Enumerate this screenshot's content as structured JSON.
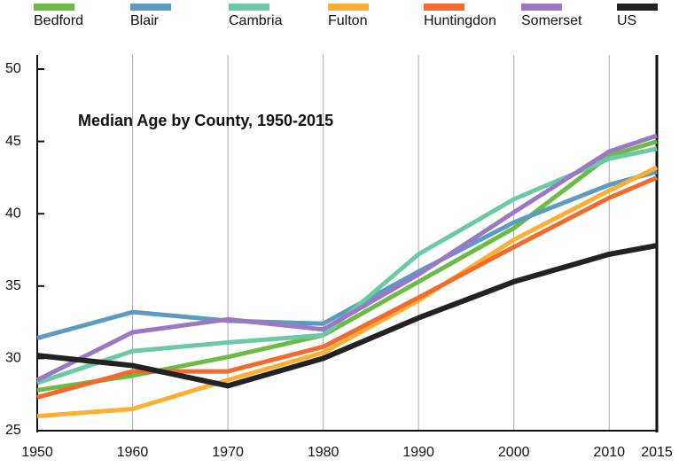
{
  "chart_data": {
    "type": "line",
    "title": "Median Age by County, 1950-2015",
    "x": [
      1950,
      1960,
      1970,
      1980,
      1990,
      2000,
      2010,
      2015
    ],
    "xlim": [
      1950,
      2015
    ],
    "xticks": [
      1950,
      1960,
      1970,
      1980,
      1990,
      2000,
      2010,
      2015
    ],
    "ylim": [
      25,
      50
    ],
    "yticks": [
      25,
      30,
      35,
      40,
      45,
      50
    ],
    "grid": "x",
    "legend": "top",
    "series": [
      {
        "name": "Bedford",
        "color": "#6dbb45",
        "values": [
          27.8,
          28.8,
          30.1,
          31.6,
          35.3,
          39.0,
          44.0,
          45.0
        ]
      },
      {
        "name": "Blair",
        "color": "#5b9bbf",
        "values": [
          31.4,
          33.2,
          32.6,
          32.4,
          36.0,
          39.4,
          42.0,
          42.9
        ]
      },
      {
        "name": "Cambria",
        "color": "#6cc9a5",
        "values": [
          28.3,
          30.5,
          31.1,
          31.6,
          37.2,
          41.0,
          43.8,
          44.5
        ]
      },
      {
        "name": "Fulton",
        "color": "#fbb034",
        "values": [
          26.0,
          26.5,
          28.5,
          30.4,
          34.0,
          38.2,
          41.6,
          43.2
        ]
      },
      {
        "name": "Huntingdon",
        "color": "#f26a2e",
        "values": [
          27.3,
          29.1,
          29.1,
          30.8,
          34.2,
          37.7,
          41.1,
          42.5
        ]
      },
      {
        "name": "Somerset",
        "color": "#9b78c2",
        "values": [
          28.5,
          31.8,
          32.7,
          32.0,
          35.8,
          40.1,
          44.3,
          45.4
        ]
      },
      {
        "name": "US",
        "color": "#222222",
        "values": [
          30.2,
          29.5,
          28.1,
          30.0,
          32.8,
          35.3,
          37.2,
          37.8
        ]
      }
    ]
  }
}
